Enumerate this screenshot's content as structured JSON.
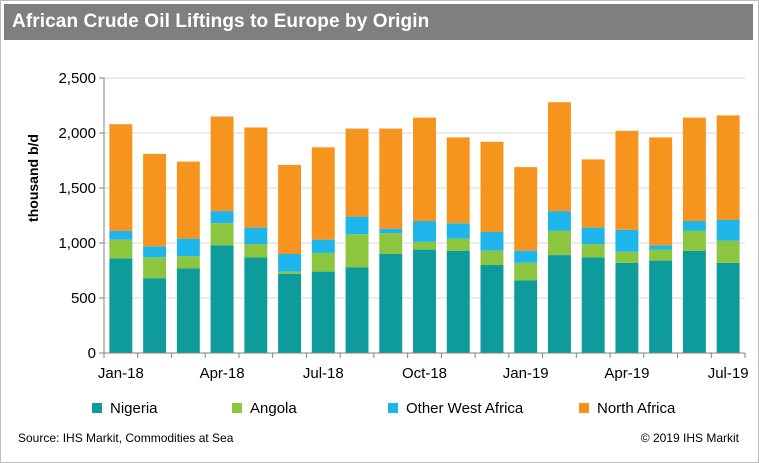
{
  "title": "African Crude Oil Liftings to Europe by Origin",
  "source": "Source: IHS Markit, Commodities at Sea",
  "copyright": "© 2019 IHS Markit",
  "colors": {
    "nigeria": "#0e9b9b",
    "angola": "#8cc63f",
    "other_west_africa": "#1eb6ea",
    "north_africa": "#f7941d",
    "title_bar": "#7f7f7f"
  },
  "chart_data": {
    "type": "bar",
    "stacked": true,
    "ylabel": "thousand b/d",
    "ylim": [
      0,
      2500
    ],
    "yticks": [
      0,
      500,
      1000,
      1500,
      2000,
      2500
    ],
    "ytick_labels": [
      "0",
      "500",
      "1,000",
      "1,500",
      "2,000",
      "2,500"
    ],
    "categories": [
      "Jan-18",
      "Feb-18",
      "Mar-18",
      "Apr-18",
      "May-18",
      "Jun-18",
      "Jul-18",
      "Aug-18",
      "Sep-18",
      "Oct-18",
      "Nov-18",
      "Dec-18",
      "Jan-19",
      "Feb-19",
      "Mar-19",
      "Apr-19",
      "May-19",
      "Jun-19",
      "Jul-19"
    ],
    "xtick_labels": [
      "Jan-18",
      "",
      "",
      "Apr-18",
      "",
      "",
      "Jul-18",
      "",
      "",
      "Oct-18",
      "",
      "",
      "Jan-19",
      "",
      "",
      "Apr-19",
      "",
      "",
      "Jul-19"
    ],
    "grid": true,
    "legend_position": "bottom",
    "series": [
      {
        "name": "Nigeria",
        "color_key": "nigeria",
        "values": [
          860,
          680,
          770,
          980,
          870,
          720,
          740,
          780,
          900,
          940,
          930,
          800,
          660,
          890,
          870,
          820,
          840,
          930,
          820
        ]
      },
      {
        "name": "Angola",
        "color_key": "angola",
        "values": [
          170,
          190,
          110,
          200,
          120,
          20,
          170,
          300,
          190,
          70,
          110,
          130,
          160,
          220,
          120,
          100,
          100,
          180,
          200
        ]
      },
      {
        "name": "Other West Africa",
        "color_key": "other_west_africa",
        "values": [
          80,
          100,
          160,
          110,
          150,
          160,
          120,
          160,
          40,
          190,
          140,
          170,
          110,
          180,
          150,
          200,
          40,
          90,
          190
        ]
      },
      {
        "name": "North Africa",
        "color_key": "north_africa",
        "values": [
          970,
          840,
          700,
          860,
          910,
          810,
          840,
          800,
          910,
          940,
          780,
          820,
          760,
          990,
          620,
          900,
          980,
          940,
          950
        ]
      }
    ]
  }
}
